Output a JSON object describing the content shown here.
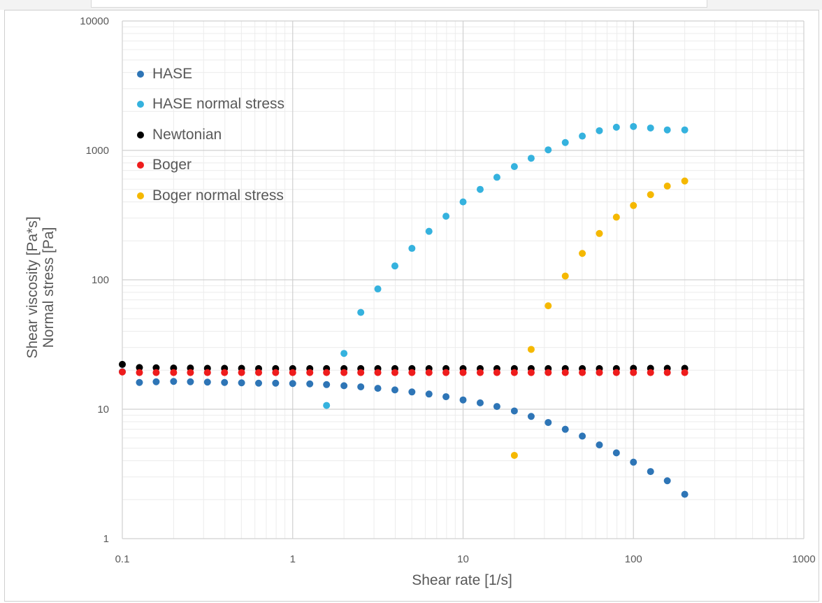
{
  "chart_data": {
    "type": "scatter",
    "title": "",
    "xlabel": "Shear rate [1/s]",
    "ylabel_lines": [
      "Shear viscosity [Pa*s]",
      "Normal stress [Pa]"
    ],
    "x_scale": "log",
    "y_scale": "log",
    "xlim": [
      0.1,
      1000
    ],
    "ylim": [
      1,
      10000
    ],
    "x_tick_labels": [
      "0.1",
      "1",
      "10",
      "100",
      "1000"
    ],
    "y_tick_labels": [
      "1",
      "10",
      "100",
      "1000",
      "10000"
    ],
    "grid": true,
    "legend_position": "top-left",
    "series": [
      {
        "name": "HASE",
        "color": "#2e75b6",
        "x": [
          0.1,
          0.126,
          0.158,
          0.2,
          0.251,
          0.316,
          0.398,
          0.501,
          0.631,
          0.794,
          1,
          1.26,
          1.58,
          2,
          2.51,
          3.16,
          3.98,
          5.01,
          6.31,
          7.94,
          10,
          12.6,
          15.8,
          20,
          25.1,
          31.6,
          39.8,
          50.1,
          63.1,
          79.4,
          100,
          126,
          158,
          200
        ],
        "y": [
          19.5,
          16.1,
          16.3,
          16.4,
          16.3,
          16.2,
          16.1,
          16.0,
          15.9,
          15.9,
          15.8,
          15.7,
          15.5,
          15.2,
          14.9,
          14.5,
          14.1,
          13.6,
          13.1,
          12.5,
          11.8,
          11.2,
          10.5,
          9.7,
          8.8,
          7.9,
          7.0,
          6.2,
          5.3,
          4.6,
          3.9,
          3.3,
          2.8,
          2.2
        ]
      },
      {
        "name": "HASE normal stress",
        "color": "#35b2de",
        "x": [
          1.58,
          2,
          2.51,
          3.16,
          3.98,
          5.01,
          6.31,
          7.94,
          10,
          12.6,
          15.8,
          20,
          25.1,
          31.6,
          39.8,
          50.1,
          63.1,
          79.4,
          100,
          126,
          158,
          200
        ],
        "y": [
          10.7,
          27,
          56,
          85,
          128,
          175,
          237,
          310,
          400,
          500,
          620,
          750,
          870,
          1010,
          1150,
          1290,
          1420,
          1510,
          1530,
          1490,
          1440,
          1440
        ]
      },
      {
        "name": "Newtonian",
        "color": "#000000",
        "x": [
          0.1,
          0.126,
          0.158,
          0.2,
          0.251,
          0.316,
          0.398,
          0.501,
          0.631,
          0.794,
          1,
          1.26,
          1.58,
          2,
          2.51,
          3.16,
          3.98,
          5.01,
          6.31,
          7.94,
          10,
          12.6,
          15.8,
          20,
          25.1,
          31.6,
          39.8,
          50.1,
          63.1,
          79.4,
          100,
          126,
          158,
          200
        ],
        "y": [
          22.2,
          21.0,
          20.9,
          20.8,
          20.8,
          20.7,
          20.7,
          20.7,
          20.6,
          20.6,
          20.6,
          20.6,
          20.6,
          20.6,
          20.6,
          20.6,
          20.6,
          20.6,
          20.6,
          20.6,
          20.6,
          20.6,
          20.6,
          20.6,
          20.6,
          20.6,
          20.6,
          20.6,
          20.6,
          20.6,
          20.7,
          20.7,
          20.7,
          20.7
        ]
      },
      {
        "name": "Boger",
        "color": "#ee1c1c",
        "x": [
          0.1,
          0.126,
          0.158,
          0.2,
          0.251,
          0.316,
          0.398,
          0.501,
          0.631,
          0.794,
          1,
          1.26,
          1.58,
          2,
          2.51,
          3.16,
          3.98,
          5.01,
          6.31,
          7.94,
          10,
          12.6,
          15.8,
          20,
          25.1,
          31.6,
          39.8,
          50.1,
          63.1,
          79.4,
          100,
          126,
          158,
          200
        ],
        "y": [
          19.4,
          19.2,
          19.2,
          19.2,
          19.2,
          19.2,
          19.2,
          19.2,
          19.2,
          19.2,
          19.2,
          19.2,
          19.2,
          19.2,
          19.2,
          19.2,
          19.2,
          19.2,
          19.2,
          19.2,
          19.2,
          19.2,
          19.2,
          19.2,
          19.2,
          19.2,
          19.2,
          19.2,
          19.2,
          19.2,
          19.2,
          19.2,
          19.2,
          19.2
        ]
      },
      {
        "name": "Boger normal stress",
        "color": "#f5b800",
        "x": [
          20,
          25.1,
          31.6,
          39.8,
          50.1,
          63.1,
          79.4,
          100,
          126,
          158,
          200
        ],
        "y": [
          4.4,
          29,
          63,
          107,
          160,
          228,
          305,
          375,
          455,
          530,
          580
        ]
      }
    ]
  }
}
